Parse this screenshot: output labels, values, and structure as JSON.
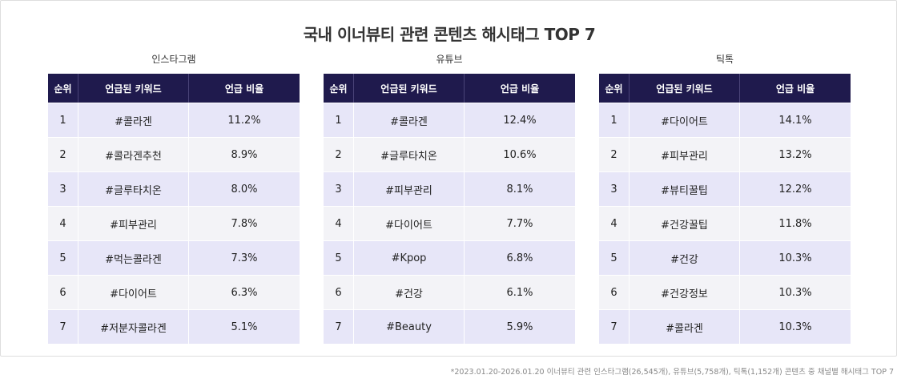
{
  "title": "국내 이너뷰티 관련 콘텐츠 해시태그 TOP 7",
  "columns": {
    "rank": "순위",
    "keyword": "언급된 키워드",
    "ratio": "언급 비율"
  },
  "footnote": "*2023.01.20-2026.01.20 이너뷰티 관련 인스타그램(26,545개), 유튜브(5,758개), 틱톡(1,152개) 콘텐츠 중 채널별 해시태그 TOP 7",
  "chart_data": [
    {
      "type": "table",
      "name": "인스타그램",
      "rows": [
        {
          "rank": "1",
          "keyword": "#콜라겐",
          "ratio": "11.2%"
        },
        {
          "rank": "2",
          "keyword": "#콜라겐추천",
          "ratio": "8.9%"
        },
        {
          "rank": "3",
          "keyword": "#글루타치온",
          "ratio": "8.0%"
        },
        {
          "rank": "4",
          "keyword": "#피부관리",
          "ratio": "7.8%"
        },
        {
          "rank": "5",
          "keyword": "#먹는콜라겐",
          "ratio": "7.3%"
        },
        {
          "rank": "6",
          "keyword": "#다이어트",
          "ratio": "6.3%"
        },
        {
          "rank": "7",
          "keyword": "#저분자콜라겐",
          "ratio": "5.1%"
        }
      ]
    },
    {
      "type": "table",
      "name": "유튜브",
      "rows": [
        {
          "rank": "1",
          "keyword": "#콜라겐",
          "ratio": "12.4%"
        },
        {
          "rank": "2",
          "keyword": "#글루타치온",
          "ratio": "10.6%"
        },
        {
          "rank": "3",
          "keyword": "#피부관리",
          "ratio": "8.1%"
        },
        {
          "rank": "4",
          "keyword": "#다이어트",
          "ratio": "7.7%"
        },
        {
          "rank": "5",
          "keyword": "#Kpop",
          "ratio": "6.8%"
        },
        {
          "rank": "6",
          "keyword": "#건강",
          "ratio": "6.1%"
        },
        {
          "rank": "7",
          "keyword": "#Beauty",
          "ratio": "5.9%"
        }
      ]
    },
    {
      "type": "table",
      "name": "틱톡",
      "rows": [
        {
          "rank": "1",
          "keyword": "#다이어트",
          "ratio": "14.1%"
        },
        {
          "rank": "2",
          "keyword": "#피부관리",
          "ratio": "13.2%"
        },
        {
          "rank": "3",
          "keyword": "#뷰티꿀팁",
          "ratio": "12.2%"
        },
        {
          "rank": "4",
          "keyword": "#건강꿀팁",
          "ratio": "11.8%"
        },
        {
          "rank": "5",
          "keyword": "#건강",
          "ratio": "10.3%"
        },
        {
          "rank": "6",
          "keyword": "#건강정보",
          "ratio": "10.3%"
        },
        {
          "rank": "7",
          "keyword": "#콜라겐",
          "ratio": "10.3%"
        }
      ]
    }
  ]
}
